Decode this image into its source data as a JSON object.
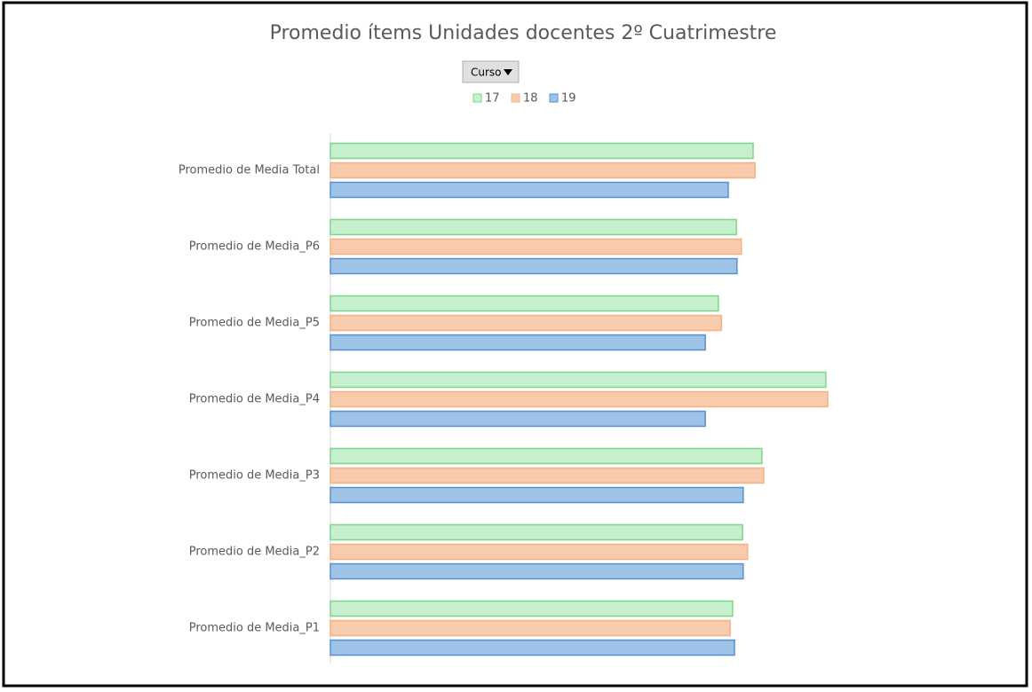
{
  "chart_data": {
    "type": "bar",
    "orientation": "horizontal",
    "title": "Promedio ítems Unidades docentes 2º Cuatrimestre",
    "filter": "Curso",
    "categories": [
      "Promedio de Media Total",
      "Promedio de Media_P6",
      "Promedio de Media_P5",
      "Promedio de Media_P4",
      "Promedio de Media_P3",
      "Promedio de Media_P2",
      "Promedio de Media_P1"
    ],
    "series": [
      {
        "name": "17",
        "color": "#c6efce",
        "stroke": "#7fd68a",
        "values": [
          6.8,
          6.53,
          6.24,
          7.97,
          6.94,
          6.63,
          6.47
        ]
      },
      {
        "name": "18",
        "color": "#f8cbad",
        "stroke": "#f4b183",
        "values": [
          6.83,
          6.61,
          6.29,
          8.0,
          6.97,
          6.71,
          6.43
        ]
      },
      {
        "name": "19",
        "color": "#9dc3e6",
        "stroke": "#5b8fd0",
        "values": [
          6.4,
          6.54,
          6.03,
          6.03,
          6.64,
          6.64,
          6.5
        ]
      }
    ],
    "xlim": [
      0,
      10
    ],
    "legend": "top"
  }
}
